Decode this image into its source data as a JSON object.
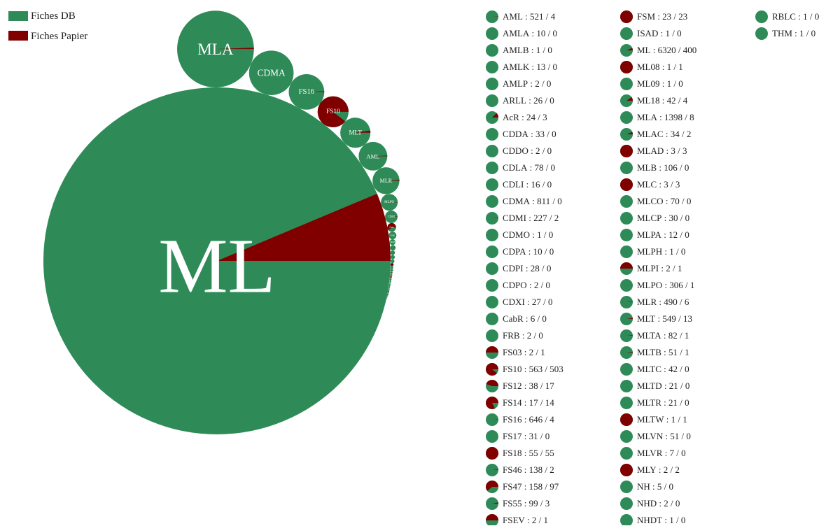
{
  "chart_data": {
    "type": "pie-bubbles",
    "series": [
      {
        "name": "Fiches DB",
        "color": "#2e8b57"
      },
      {
        "name": "Fiches Papier",
        "color": "#800000"
      }
    ],
    "categories": [
      "AML",
      "AMLA",
      "AMLB",
      "AMLK",
      "AMLP",
      "ARLL",
      "AcR",
      "CDDA",
      "CDDO",
      "CDLA",
      "CDLI",
      "CDMA",
      "CDMI",
      "CDMO",
      "CDPA",
      "CDPI",
      "CDPO",
      "CDXI",
      "CabR",
      "FRB",
      "FS03",
      "FS10",
      "FS12",
      "FS14",
      "FS16",
      "FS17",
      "FS18",
      "FS46",
      "FS47",
      "FS55",
      "FSEV",
      "FSM",
      "ISAD",
      "ML",
      "ML08",
      "ML09",
      "ML18",
      "MLA",
      "MLAC",
      "MLAD",
      "MLB",
      "MLC",
      "MLCO",
      "MLCP",
      "MLPA",
      "MLPH",
      "MLPI",
      "MLPO",
      "MLR",
      "MLT",
      "MLTA",
      "MLTB",
      "MLTC",
      "MLTD",
      "MLTR",
      "MLTW",
      "MLVN",
      "MLVR",
      "MLY",
      "NH",
      "NHD",
      "NHDT",
      "RBLC",
      "THM"
    ],
    "totals": [
      521,
      10,
      1,
      13,
      2,
      26,
      24,
      33,
      2,
      78,
      16,
      811,
      227,
      1,
      10,
      28,
      2,
      27,
      6,
      2,
      2,
      563,
      38,
      17,
      646,
      31,
      55,
      138,
      158,
      99,
      2,
      23,
      1,
      6320,
      1,
      1,
      42,
      1398,
      34,
      3,
      106,
      3,
      70,
      30,
      12,
      1,
      2,
      306,
      490,
      549,
      82,
      51,
      42,
      21,
      21,
      1,
      51,
      7,
      2,
      5,
      2,
      1,
      1,
      1
    ],
    "paper": [
      4,
      0,
      0,
      0,
      0,
      0,
      3,
      0,
      0,
      0,
      0,
      0,
      2,
      0,
      0,
      0,
      0,
      0,
      0,
      0,
      1,
      503,
      17,
      14,
      4,
      0,
      55,
      2,
      97,
      3,
      1,
      23,
      0,
      400,
      1,
      0,
      4,
      8,
      2,
      3,
      0,
      3,
      0,
      0,
      0,
      0,
      1,
      1,
      6,
      13,
      1,
      1,
      0,
      0,
      0,
      1,
      0,
      0,
      2,
      0,
      0,
      0,
      0,
      0
    ]
  }
}
